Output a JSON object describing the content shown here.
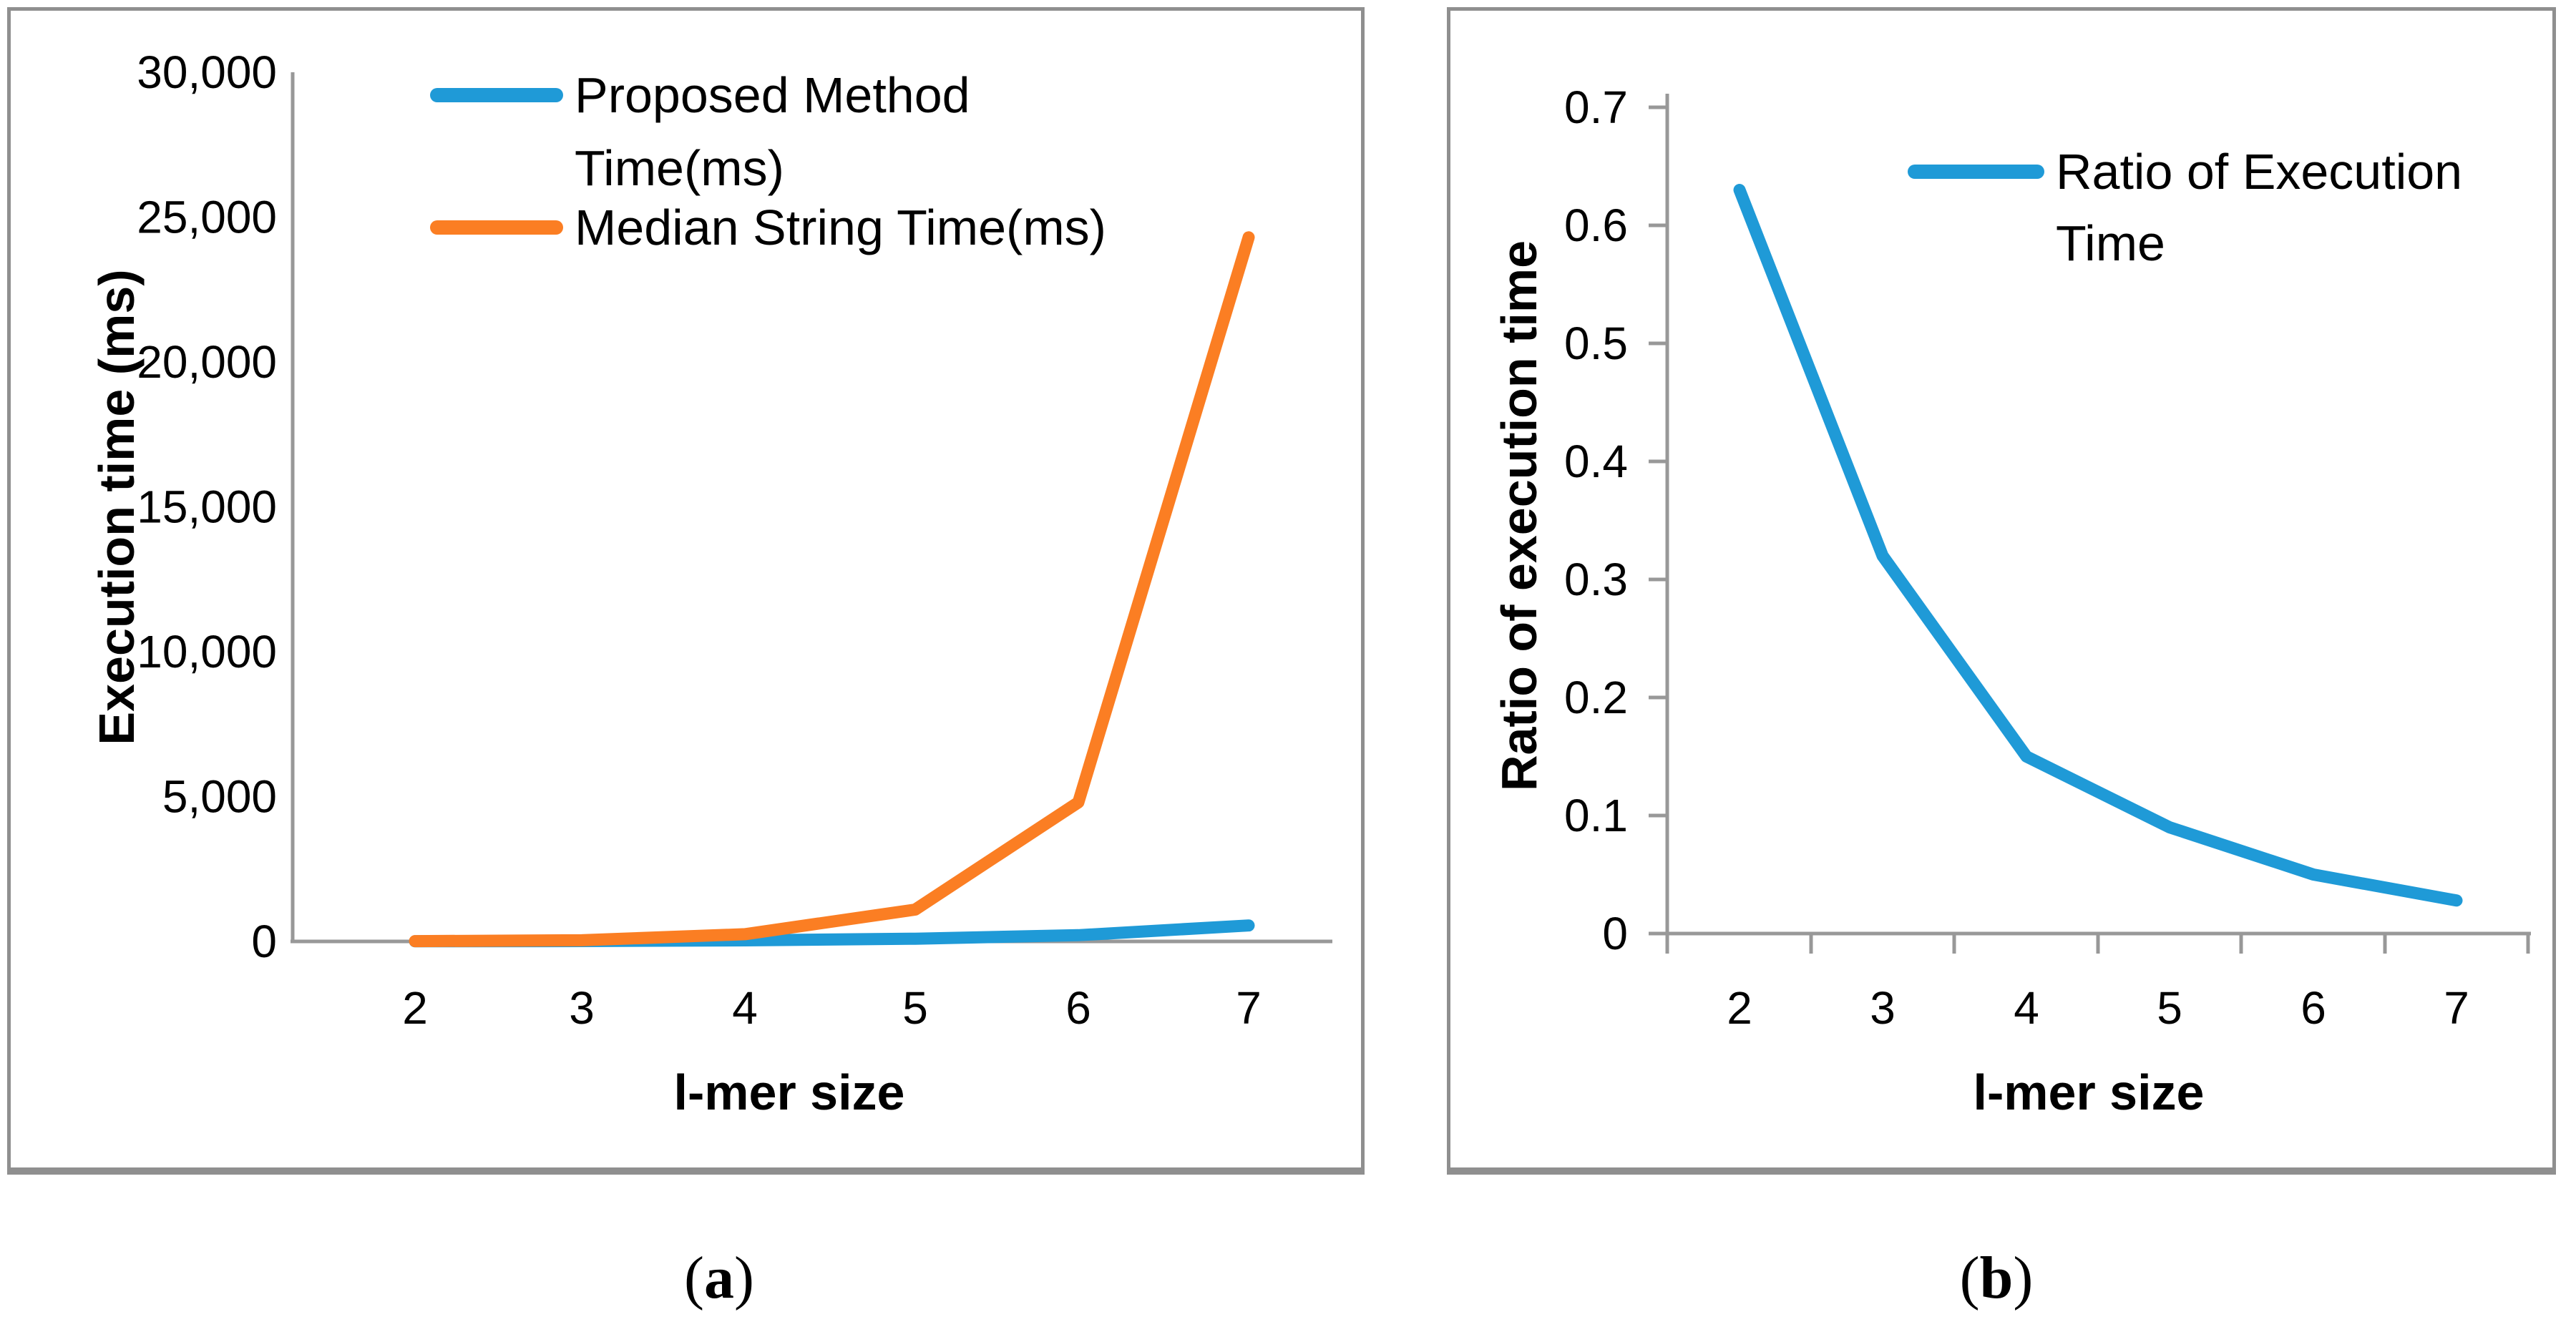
{
  "colors": {
    "blue": "#1F9AD7",
    "orange": "#FB7E23",
    "axis_gray": "#989898",
    "border_gray": "#8F8F8F",
    "text": "#000000"
  },
  "captions": [
    {
      "pre": "(",
      "letter": "a",
      "post": ")"
    },
    {
      "pre": "(",
      "letter": "b",
      "post": ")"
    }
  ],
  "chart_data": [
    {
      "type": "line",
      "title": "",
      "xlabel": "l-mer size",
      "ylabel": "Execution time (ms)",
      "categories": [
        2,
        3,
        4,
        5,
        6,
        7
      ],
      "x_tick_labels": [
        "2",
        "3",
        "4",
        "5",
        "6",
        "7"
      ],
      "y_tick_labels": [
        "0",
        "5,000",
        "10,000",
        "15,000",
        "20,000",
        "25,000",
        "30,000"
      ],
      "ylim": [
        0,
        30000
      ],
      "y_step": 5000,
      "grid": false,
      "legend_position": "top-center-inside",
      "series": [
        {
          "name": "Proposed Method Time(ms)",
          "legend_lines": [
            "Proposed Method",
            "Time(ms)"
          ],
          "color": "#1F9AD7",
          "values": [
            6,
            13,
            38,
            94,
            215,
            550
          ]
        },
        {
          "name": "Median String Time(ms)",
          "legend_lines": [
            "Median String Time(ms)"
          ],
          "color": "#FB7E23",
          "values": [
            10,
            40,
            250,
            1100,
            4800,
            24300
          ]
        }
      ]
    },
    {
      "type": "line",
      "title": "",
      "xlabel": "l-mer size",
      "ylabel": "Ratio of execution time",
      "categories": [
        2,
        3,
        4,
        5,
        6,
        7
      ],
      "x_tick_labels": [
        "2",
        "3",
        "4",
        "5",
        "6",
        "7"
      ],
      "y_tick_labels": [
        "0",
        "0.1",
        "0.2",
        "0.3",
        "0.4",
        "0.5",
        "0.6",
        "0.7"
      ],
      "ylim": [
        0,
        0.7
      ],
      "y_step": 0.1,
      "grid": false,
      "legend_position": "top-center-inside",
      "series": [
        {
          "name": "Ratio of Execution Time",
          "legend_lines": [
            "Ratio of Execution",
            "Time"
          ],
          "color": "#1F9AD7",
          "values": [
            0.63,
            0.32,
            0.15,
            0.09,
            0.05,
            0.028
          ]
        }
      ]
    }
  ]
}
